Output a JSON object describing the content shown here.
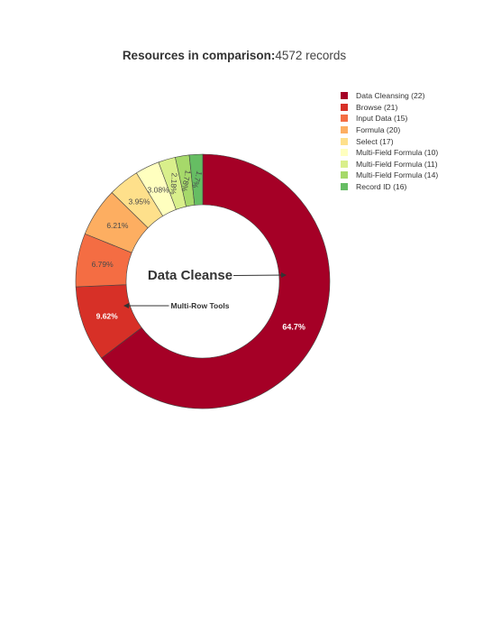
{
  "title": {
    "bold": "Resources in comparison:",
    "normal": "4572 records"
  },
  "chart_data": {
    "type": "pie",
    "hole": true,
    "legend_position": "top-right",
    "slices": [
      {
        "label": "Data Cleansing (22)",
        "value": 64.7,
        "text": "64.7%",
        "color": "#a50026",
        "text_color": "#ffffff"
      },
      {
        "label": "Browse (21)",
        "value": 9.62,
        "text": "9.62%",
        "color": "#d73027",
        "text_color": "#ffffff"
      },
      {
        "label": "Input Data (15)",
        "value": 6.79,
        "text": "6.79%",
        "color": "#f46d43",
        "text_color": "#4a4a4a"
      },
      {
        "label": "Formula (20)",
        "value": 6.21,
        "text": "6.21%",
        "color": "#fdae61",
        "text_color": "#4a4a4a"
      },
      {
        "label": "Select (17)",
        "value": 3.95,
        "text": "3.95%",
        "color": "#fee08b",
        "text_color": "#4a4a4a"
      },
      {
        "label": "Multi-Field Formula (10)",
        "value": 3.08,
        "text": "3.08%",
        "color": "#ffffbf",
        "text_color": "#4a4a4a"
      },
      {
        "label": "Multi-Field Formula (11)",
        "value": 2.18,
        "text": "2.18%",
        "color": "#d9ef8b",
        "text_color": "#4a4a4a"
      },
      {
        "label": "Multi-Field Formula (14)",
        "value": 1.78,
        "text": "1.78%",
        "color": "#a6d96a",
        "text_color": "#4a4a4a"
      },
      {
        "label": "Record ID (16)",
        "value": 1.7,
        "text": "1.7%",
        "color": "#66bd63",
        "text_color": "#4a4a4a"
      }
    ],
    "annotations": [
      {
        "text": "Data Cleanse",
        "points_to": "Data Cleansing (22)"
      },
      {
        "text": "Multi-Row Tools",
        "points_to": "Multi-Field Formula (10)"
      }
    ]
  }
}
